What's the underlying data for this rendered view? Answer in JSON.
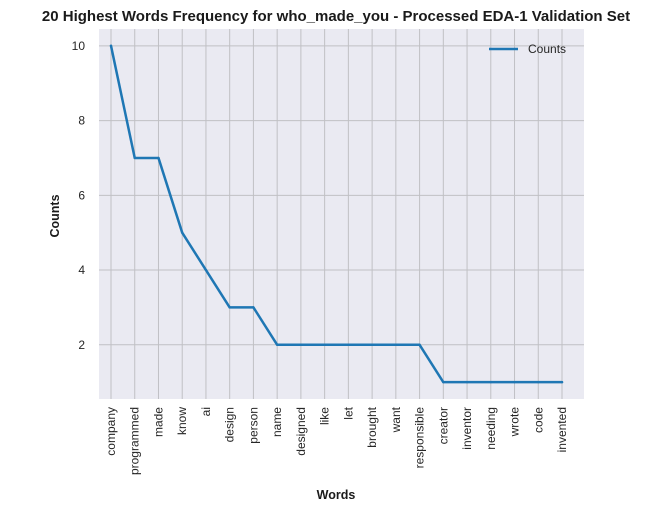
{
  "chart_data": {
    "type": "line",
    "title": "20 Highest Words Frequency for who_made_you - Processed EDA-1 Validation Set",
    "xlabel": "Words",
    "ylabel": "Counts",
    "categories": [
      "company",
      "programmed",
      "made",
      "know",
      "ai",
      "design",
      "person",
      "name",
      "designed",
      "like",
      "let",
      "brought",
      "want",
      "responsible",
      "creator",
      "inventor",
      "needing",
      "wrote",
      "code",
      "invented"
    ],
    "series": [
      {
        "name": "Counts",
        "values": [
          10,
          7,
          7,
          5,
          4,
          3,
          3,
          2,
          2,
          2,
          2,
          2,
          2,
          2,
          1,
          1,
          1,
          1,
          1,
          1
        ]
      }
    ],
    "yticks": [
      2,
      4,
      6,
      8,
      10
    ],
    "ylim": [
      0.55,
      10.45
    ],
    "grid": true,
    "legend": "top-right",
    "colors": {
      "line": "#1f77b4",
      "plot_bg": "#eaeaf2",
      "grid": "#c0c0c4"
    }
  }
}
